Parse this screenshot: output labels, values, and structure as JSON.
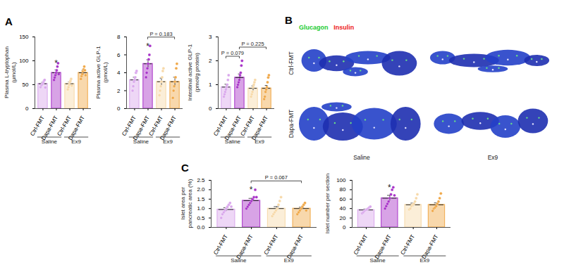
{
  "chart_data": [
    {
      "type": "bar",
      "panel": "A",
      "y_label": "Plasma L-tryptophan\n(μmol/L)",
      "categories": [
        "Ctrl-FMT",
        "Dapa-FMT",
        "Ctrl-FMT",
        "Dapa-FMT"
      ],
      "group_labels": [
        "Saline",
        "Saline",
        "Ex9",
        "Ex9"
      ],
      "values": [
        52,
        75,
        52,
        75
      ],
      "errors": [
        3,
        6,
        4,
        5
      ],
      "points": [
        [
          45,
          48,
          50,
          52,
          55,
          58,
          60,
          44
        ],
        [
          60,
          65,
          70,
          75,
          80,
          88,
          95,
          72
        ],
        [
          40,
          45,
          50,
          55,
          58,
          62,
          48
        ],
        [
          62,
          68,
          72,
          78,
          82,
          88,
          80,
          70
        ]
      ],
      "colors": [
        "#d9a6ec",
        "#a832c8",
        "#f7d9a8",
        "#f0a848"
      ],
      "ylim": [
        0,
        150
      ],
      "yticks": [
        0,
        50,
        100,
        150
      ],
      "annotations": [
        {
          "text": "*",
          "category": 1
        }
      ]
    },
    {
      "type": "bar",
      "y_label": "Plasma active GLP-1\n(pmol/L)",
      "categories": [
        "Ctrl-FMT",
        "Dapa-FMT",
        "Ctrl-FMT",
        "Dapa-FMT"
      ],
      "group_labels": [
        "Saline",
        "Saline",
        "Ex9",
        "Ex9"
      ],
      "values": [
        3.2,
        5.0,
        3.0,
        3.0
      ],
      "errors": [
        0.3,
        0.45,
        0.4,
        0.5
      ],
      "points": [
        [
          2.0,
          2.5,
          3.0,
          3.2,
          3.5,
          4.0,
          4.2
        ],
        [
          3.5,
          4.0,
          4.5,
          5.0,
          5.5,
          6.0,
          7.0
        ],
        [
          1.5,
          2.0,
          2.5,
          3.0,
          3.5,
          4.2,
          4.5
        ],
        [
          1.2,
          2.0,
          2.5,
          3.0,
          3.5,
          4.5,
          5.0
        ]
      ],
      "colors": [
        "#d9a6ec",
        "#a832c8",
        "#f7d9a8",
        "#f0a848"
      ],
      "ylim": [
        0,
        8
      ],
      "yticks": [
        0,
        2,
        4,
        6,
        8
      ],
      "annotations": [
        {
          "text": "*",
          "category": 1
        }
      ],
      "comparisons": [
        {
          "from": 1,
          "to": 3,
          "label": "P = 0.183"
        }
      ]
    },
    {
      "type": "bar",
      "y_label": "Intestinal active GLP-1\n(pmol/g protein)",
      "categories": [
        "Ctrl-FMT",
        "Dapa-FMT",
        "Ctrl-FMT",
        "Dapa-FMT"
      ],
      "group_labels": [
        "Saline",
        "Saline",
        "Ex9",
        "Ex9"
      ],
      "values": [
        0.9,
        1.3,
        0.85,
        0.85
      ],
      "errors": [
        0.12,
        0.15,
        0.1,
        0.12
      ],
      "points": [
        [
          0.5,
          0.6,
          0.7,
          0.8,
          0.9,
          1.0,
          1.2,
          1.4
        ],
        [
          0.9,
          1.0,
          1.1,
          1.2,
          1.4,
          1.5,
          1.8,
          2.0
        ],
        [
          0.5,
          0.6,
          0.7,
          0.9,
          1.0,
          1.1,
          1.2
        ],
        [
          0.4,
          0.5,
          0.7,
          0.8,
          0.9,
          1.1,
          1.3,
          1.4
        ]
      ],
      "colors": [
        "#d9a6ec",
        "#a832c8",
        "#f7d9a8",
        "#f0a848"
      ],
      "ylim": [
        0,
        3
      ],
      "yticks": [
        0,
        1,
        2,
        3
      ],
      "comparisons": [
        {
          "from": 0,
          "to": 1,
          "label": "P = 0.079"
        },
        {
          "from": 1,
          "to": 3,
          "label": "P = 0.225"
        }
      ]
    },
    {
      "type": "image",
      "panel": "B",
      "legend": [
        {
          "name": "Glucagon",
          "color": "#22cc33"
        },
        {
          "name": "Insulin",
          "color": "#ee2222"
        }
      ],
      "rows": [
        "Ctrl-FMT",
        "Dapa-FMT"
      ],
      "columns": [
        "Saline",
        "Ex9"
      ]
    },
    {
      "type": "bar",
      "panel": "C",
      "y_label": "Islet area per\npancreatic area (%)",
      "categories": [
        "Ctrl-FMT",
        "Dapa-FMT",
        "Ctrl-FMT",
        "Dapa-FMT"
      ],
      "group_labels": [
        "Saline",
        "Saline",
        "Ex9",
        "Ex9"
      ],
      "values": [
        0.95,
        1.42,
        1.0,
        1.0
      ],
      "errors": [
        0.1,
        0.12,
        0.1,
        0.07
      ],
      "points": [
        [
          0.5,
          0.7,
          0.8,
          0.9,
          1.0,
          1.1,
          1.2,
          1.3,
          1.1
        ],
        [
          1.0,
          1.1,
          1.2,
          1.3,
          1.4,
          1.5,
          1.6,
          2.0,
          1.6
        ],
        [
          0.6,
          0.7,
          0.8,
          0.9,
          1.0,
          1.2,
          1.4,
          1.6
        ],
        [
          0.7,
          0.8,
          0.9,
          1.0,
          1.1,
          1.2,
          1.3,
          0.9
        ]
      ],
      "colors": [
        "#d9a6ec",
        "#a832c8",
        "#f7d9a8",
        "#f0a848"
      ],
      "ylim": [
        0,
        2.5
      ],
      "yticks": [
        {
          "value": 0,
          "label": "0.0"
        },
        0.5,
        {
          "value": 1,
          "label": "1.0"
        },
        1.5,
        {
          "value": 2,
          "label": "2.0"
        },
        2.5
      ],
      "annotations": [
        {
          "text": "*",
          "category": 1
        }
      ],
      "comparisons": [
        {
          "from": 1,
          "to": 3,
          "label": "P = 0.067"
        }
      ]
    },
    {
      "type": "bar",
      "y_label": "Islet number per section",
      "categories": [
        "Ctrl-FMT",
        "Dapa-FMT",
        "Ctrl-FMT",
        "Dapa-FMT"
      ],
      "group_labels": [
        "Saline",
        "Saline",
        "Ex9",
        "Ex9"
      ],
      "values": [
        37,
        62,
        48,
        48
      ],
      "errors": [
        2,
        6,
        3.5,
        4
      ],
      "points": [
        [
          30,
          32,
          35,
          37,
          38,
          40,
          42,
          44
        ],
        [
          40,
          45,
          50,
          55,
          62,
          70,
          80,
          85,
          68
        ],
        [
          38,
          40,
          45,
          48,
          50,
          55,
          62,
          70
        ],
        [
          35,
          40,
          42,
          45,
          50,
          55,
          62,
          72
        ]
      ],
      "colors": [
        "#d9a6ec",
        "#a832c8",
        "#f7d9a8",
        "#f0a848"
      ],
      "ylim": [
        0,
        100
      ],
      "yticks": [
        0,
        20,
        40,
        60,
        80,
        100
      ],
      "annotations": [
        {
          "text": "*",
          "category": 1
        }
      ]
    }
  ]
}
